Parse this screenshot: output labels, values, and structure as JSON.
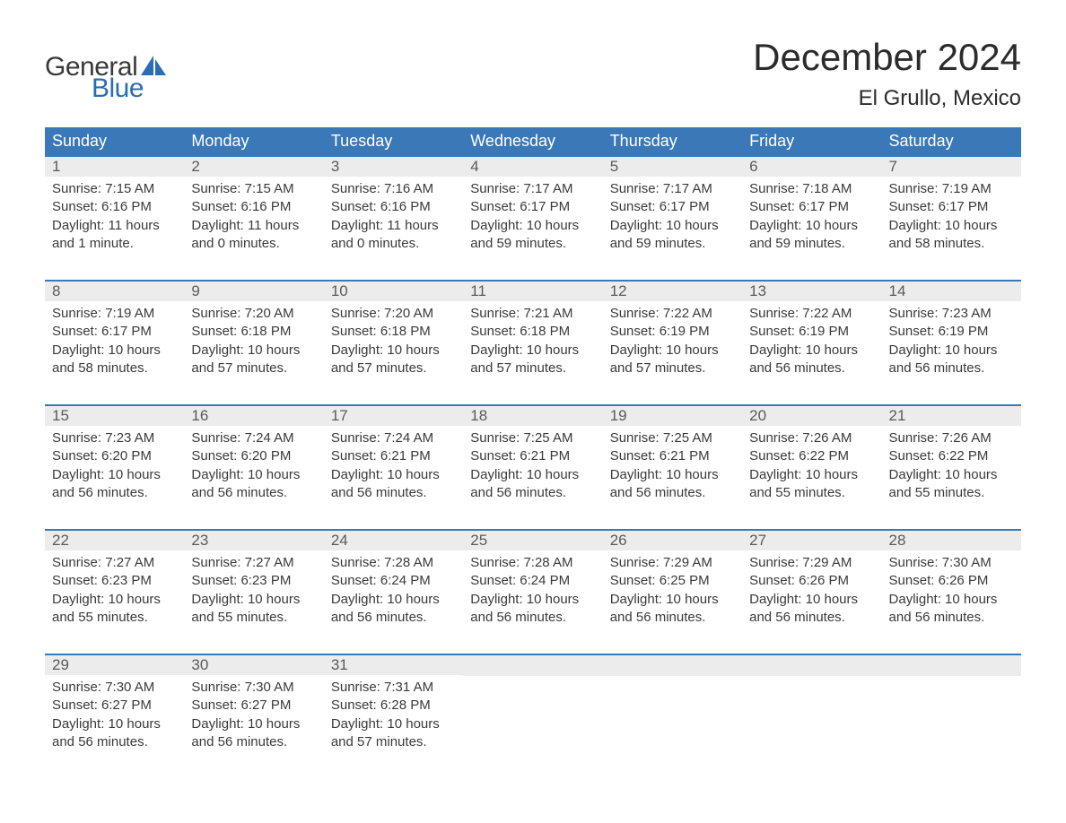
{
  "brand": {
    "word1": "General",
    "word2": "Blue",
    "accent_color": "#2a6db5"
  },
  "title": {
    "month_year": "December 2024",
    "location": "El Grullo, Mexico"
  },
  "colors": {
    "header_bg": "#3a78b8",
    "header_text": "#ffffff",
    "daynum_bg": "#ececec",
    "daynum_text": "#5a5a5a",
    "body_text": "#3a3a3a",
    "row_divider": "#3a78b8",
    "page_bg": "#ffffff"
  },
  "typography": {
    "month_year_fontsize": 42,
    "location_fontsize": 24,
    "weekday_fontsize": 18,
    "daynum_fontsize": 17,
    "body_fontsize": 15,
    "logo_fontsize": 30
  },
  "layout": {
    "columns": 7,
    "rows": 5,
    "week_start": "Sunday"
  },
  "weekdays": [
    "Sunday",
    "Monday",
    "Tuesday",
    "Wednesday",
    "Thursday",
    "Friday",
    "Saturday"
  ],
  "labels": {
    "sunrise": "Sunrise:",
    "sunset": "Sunset:",
    "daylight": "Daylight:"
  },
  "days": [
    {
      "n": 1,
      "sunrise": "7:15 AM",
      "sunset": "6:16 PM",
      "dl1": "11 hours",
      "dl2": "and 1 minute."
    },
    {
      "n": 2,
      "sunrise": "7:15 AM",
      "sunset": "6:16 PM",
      "dl1": "11 hours",
      "dl2": "and 0 minutes."
    },
    {
      "n": 3,
      "sunrise": "7:16 AM",
      "sunset": "6:16 PM",
      "dl1": "11 hours",
      "dl2": "and 0 minutes."
    },
    {
      "n": 4,
      "sunrise": "7:17 AM",
      "sunset": "6:17 PM",
      "dl1": "10 hours",
      "dl2": "and 59 minutes."
    },
    {
      "n": 5,
      "sunrise": "7:17 AM",
      "sunset": "6:17 PM",
      "dl1": "10 hours",
      "dl2": "and 59 minutes."
    },
    {
      "n": 6,
      "sunrise": "7:18 AM",
      "sunset": "6:17 PM",
      "dl1": "10 hours",
      "dl2": "and 59 minutes."
    },
    {
      "n": 7,
      "sunrise": "7:19 AM",
      "sunset": "6:17 PM",
      "dl1": "10 hours",
      "dl2": "and 58 minutes."
    },
    {
      "n": 8,
      "sunrise": "7:19 AM",
      "sunset": "6:17 PM",
      "dl1": "10 hours",
      "dl2": "and 58 minutes."
    },
    {
      "n": 9,
      "sunrise": "7:20 AM",
      "sunset": "6:18 PM",
      "dl1": "10 hours",
      "dl2": "and 57 minutes."
    },
    {
      "n": 10,
      "sunrise": "7:20 AM",
      "sunset": "6:18 PM",
      "dl1": "10 hours",
      "dl2": "and 57 minutes."
    },
    {
      "n": 11,
      "sunrise": "7:21 AM",
      "sunset": "6:18 PM",
      "dl1": "10 hours",
      "dl2": "and 57 minutes."
    },
    {
      "n": 12,
      "sunrise": "7:22 AM",
      "sunset": "6:19 PM",
      "dl1": "10 hours",
      "dl2": "and 57 minutes."
    },
    {
      "n": 13,
      "sunrise": "7:22 AM",
      "sunset": "6:19 PM",
      "dl1": "10 hours",
      "dl2": "and 56 minutes."
    },
    {
      "n": 14,
      "sunrise": "7:23 AM",
      "sunset": "6:19 PM",
      "dl1": "10 hours",
      "dl2": "and 56 minutes."
    },
    {
      "n": 15,
      "sunrise": "7:23 AM",
      "sunset": "6:20 PM",
      "dl1": "10 hours",
      "dl2": "and 56 minutes."
    },
    {
      "n": 16,
      "sunrise": "7:24 AM",
      "sunset": "6:20 PM",
      "dl1": "10 hours",
      "dl2": "and 56 minutes."
    },
    {
      "n": 17,
      "sunrise": "7:24 AM",
      "sunset": "6:21 PM",
      "dl1": "10 hours",
      "dl2": "and 56 minutes."
    },
    {
      "n": 18,
      "sunrise": "7:25 AM",
      "sunset": "6:21 PM",
      "dl1": "10 hours",
      "dl2": "and 56 minutes."
    },
    {
      "n": 19,
      "sunrise": "7:25 AM",
      "sunset": "6:21 PM",
      "dl1": "10 hours",
      "dl2": "and 56 minutes."
    },
    {
      "n": 20,
      "sunrise": "7:26 AM",
      "sunset": "6:22 PM",
      "dl1": "10 hours",
      "dl2": "and 55 minutes."
    },
    {
      "n": 21,
      "sunrise": "7:26 AM",
      "sunset": "6:22 PM",
      "dl1": "10 hours",
      "dl2": "and 55 minutes."
    },
    {
      "n": 22,
      "sunrise": "7:27 AM",
      "sunset": "6:23 PM",
      "dl1": "10 hours",
      "dl2": "and 55 minutes."
    },
    {
      "n": 23,
      "sunrise": "7:27 AM",
      "sunset": "6:23 PM",
      "dl1": "10 hours",
      "dl2": "and 55 minutes."
    },
    {
      "n": 24,
      "sunrise": "7:28 AM",
      "sunset": "6:24 PM",
      "dl1": "10 hours",
      "dl2": "and 56 minutes."
    },
    {
      "n": 25,
      "sunrise": "7:28 AM",
      "sunset": "6:24 PM",
      "dl1": "10 hours",
      "dl2": "and 56 minutes."
    },
    {
      "n": 26,
      "sunrise": "7:29 AM",
      "sunset": "6:25 PM",
      "dl1": "10 hours",
      "dl2": "and 56 minutes."
    },
    {
      "n": 27,
      "sunrise": "7:29 AM",
      "sunset": "6:26 PM",
      "dl1": "10 hours",
      "dl2": "and 56 minutes."
    },
    {
      "n": 28,
      "sunrise": "7:30 AM",
      "sunset": "6:26 PM",
      "dl1": "10 hours",
      "dl2": "and 56 minutes."
    },
    {
      "n": 29,
      "sunrise": "7:30 AM",
      "sunset": "6:27 PM",
      "dl1": "10 hours",
      "dl2": "and 56 minutes."
    },
    {
      "n": 30,
      "sunrise": "7:30 AM",
      "sunset": "6:27 PM",
      "dl1": "10 hours",
      "dl2": "and 56 minutes."
    },
    {
      "n": 31,
      "sunrise": "7:31 AM",
      "sunset": "6:28 PM",
      "dl1": "10 hours",
      "dl2": "and 57 minutes."
    }
  ]
}
